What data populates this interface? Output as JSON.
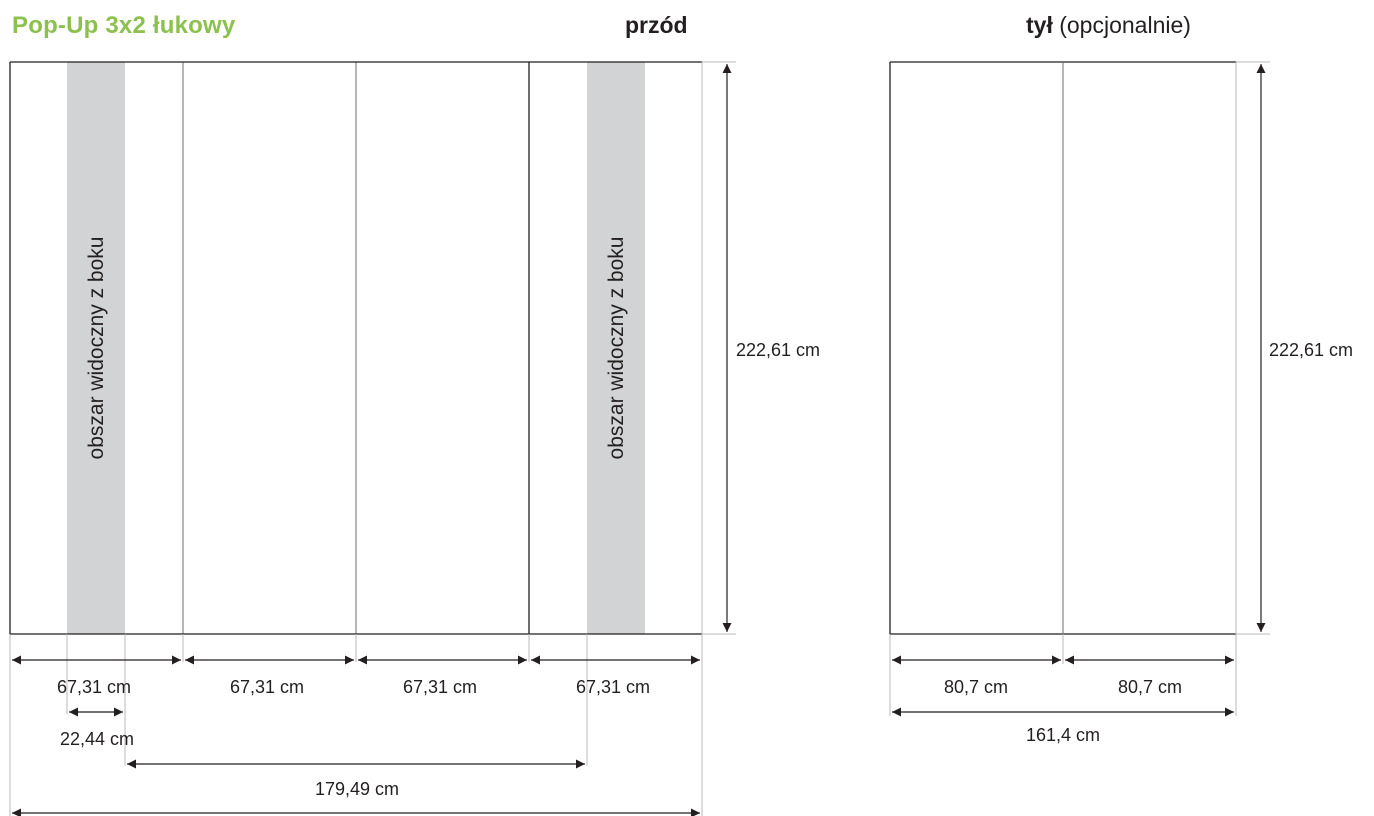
{
  "title": "Pop-Up 3x2 łukowy",
  "front": {
    "heading": "przód",
    "side_area_label": "obszar widoczny z boku",
    "height_label": "222,61 cm",
    "panel_width_labels": [
      "67,31 cm",
      "67,31 cm",
      "67,31 cm",
      "67,31 cm"
    ],
    "side_strip_label": "22,44 cm",
    "inner_span_label": "179,49 cm"
  },
  "back": {
    "heading_bold": "tył",
    "heading_note": "(opcjonalnie)",
    "height_label": "222,61 cm",
    "panel_width_labels": [
      "80,7 cm",
      "80,7 cm"
    ],
    "total_label": "161,4 cm"
  },
  "colors": {
    "title": "#8cc04f",
    "side_area_fill": "#d1d3d4",
    "outline": "#231f20",
    "divider": "#6d6e71",
    "guide": "#b8b9bb"
  }
}
